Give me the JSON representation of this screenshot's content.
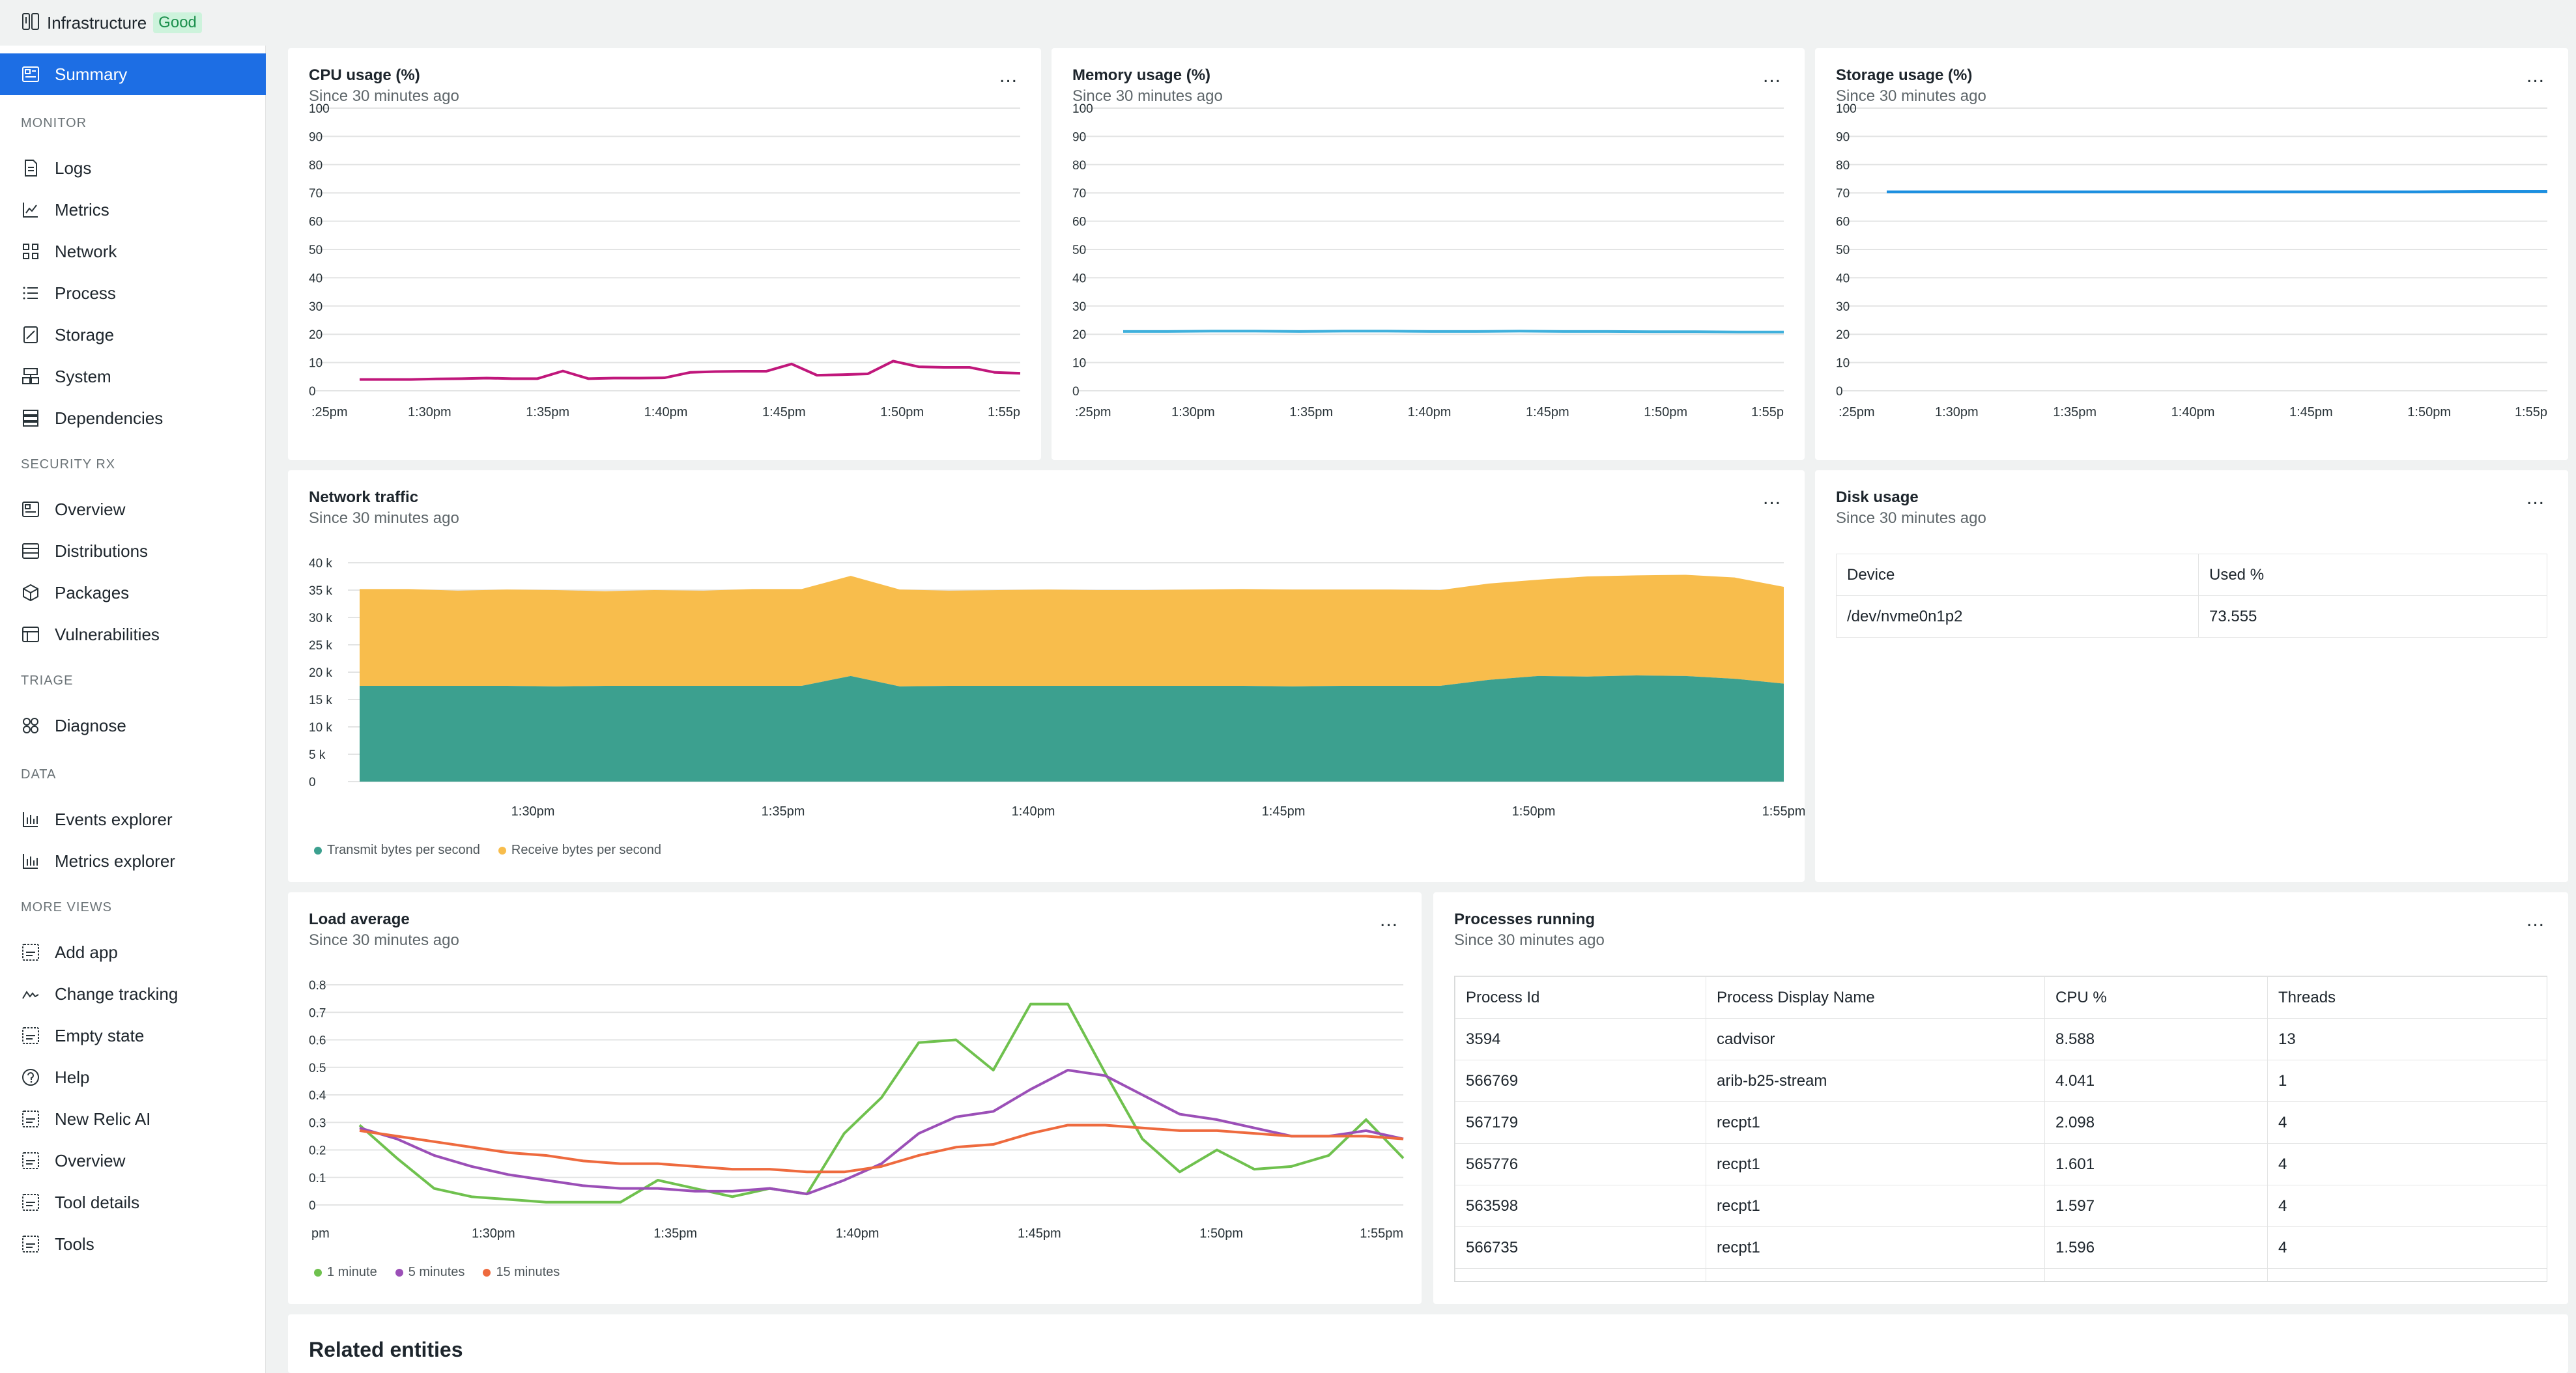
{
  "header": {
    "title": "Infrastructure",
    "status": "Good"
  },
  "sidebar": {
    "summary": "Summary",
    "sections": {
      "monitor": "MONITOR",
      "security": "SECURITY RX",
      "triage": "TRIAGE",
      "data": "DATA",
      "more": "MORE VIEWS"
    },
    "monitor": [
      "Logs",
      "Metrics",
      "Network",
      "Process",
      "Storage",
      "System",
      "Dependencies"
    ],
    "security": [
      "Overview",
      "Distributions",
      "Packages",
      "Vulnerabilities"
    ],
    "triage": [
      "Diagnose"
    ],
    "data": [
      "Events explorer",
      "Metrics explorer"
    ],
    "more": [
      "Add app",
      "Change tracking",
      "Empty state",
      "Help",
      "New Relic AI",
      "Overview",
      "Tool details",
      "Tools"
    ]
  },
  "cards": {
    "cpu": {
      "title": "CPU usage (%)",
      "subtitle": "Since 30 minutes ago",
      "menu": "..."
    },
    "memory": {
      "title": "Memory usage (%)",
      "subtitle": "Since 30 minutes ago",
      "menu": "..."
    },
    "storage": {
      "title": "Storage usage (%)",
      "subtitle": "Since 30 minutes ago",
      "menu": "..."
    },
    "network": {
      "title": "Network traffic",
      "subtitle": "Since 30 minutes ago",
      "menu": "..."
    },
    "disk": {
      "title": "Disk usage",
      "subtitle": "Since 30 minutes ago",
      "menu": "...",
      "headers": [
        "Device",
        "Used %"
      ],
      "rows": [
        [
          "/dev/nvme0n1p2",
          "73.555"
        ]
      ]
    },
    "load": {
      "title": "Load average",
      "subtitle": "Since 30 minutes ago",
      "menu": "..."
    },
    "processes": {
      "title": "Processes running",
      "subtitle": "Since 30 minutes ago",
      "menu": "...",
      "headers": [
        "Process Id",
        "Process Display Name",
        "CPU %",
        "Threads"
      ],
      "rows": [
        [
          "3594",
          "cadvisor",
          "8.588",
          "13"
        ],
        [
          "566769",
          "arib-b25-stream",
          "4.041",
          "1"
        ],
        [
          "567179",
          "recpt1",
          "2.098",
          "4"
        ],
        [
          "565776",
          "recpt1",
          "1.601",
          "4"
        ],
        [
          "563598",
          "recpt1",
          "1.597",
          "4"
        ],
        [
          "566735",
          "recpt1",
          "1.596",
          "4"
        ]
      ]
    },
    "related": {
      "title": "Related entities"
    }
  },
  "chart_data": [
    {
      "id": "cpu",
      "type": "line",
      "title": "CPU usage (%)",
      "color": "#c0177b",
      "ylim": [
        0,
        100
      ],
      "yticks": [
        "0",
        "10",
        "20",
        "30",
        "40",
        "50",
        "60",
        "70",
        "80",
        "90",
        "100"
      ],
      "xticks": [
        ":25pm",
        "1:30pm",
        "1:35pm",
        "1:40pm",
        "1:45pm",
        "1:50pm",
        "1:55p"
      ],
      "series": [
        {
          "name": "CPU",
          "values": [
            4,
            4,
            4,
            4.2,
            4.3,
            4.5,
            4.3,
            4.3,
            7,
            4.3,
            4.5,
            4.5,
            4.6,
            6.5,
            6.8,
            6.9,
            6.9,
            9.5,
            5.5,
            5.7,
            6,
            10.5,
            8.5,
            8.3,
            8.3,
            6.5,
            6.2
          ]
        }
      ]
    },
    {
      "id": "memory",
      "type": "line",
      "title": "Memory usage (%)",
      "color": "#3fb0dc",
      "ylim": [
        0,
        100
      ],
      "yticks": [
        "0",
        "10",
        "20",
        "30",
        "40",
        "50",
        "60",
        "70",
        "80",
        "90",
        "100"
      ],
      "xticks": [
        ":25pm",
        "1:30pm",
        "1:35pm",
        "1:40pm",
        "1:45pm",
        "1:50pm",
        "1:55p"
      ],
      "series": [
        {
          "name": "Memory",
          "values": [
            21,
            21,
            21.1,
            21.1,
            21,
            21.1,
            21.1,
            21,
            21,
            21.1,
            21,
            21,
            20.9,
            20.9,
            20.8,
            20.8
          ]
        }
      ]
    },
    {
      "id": "storage",
      "type": "line",
      "title": "Storage usage (%)",
      "color": "#1b8fe0",
      "ylim": [
        0,
        100
      ],
      "yticks": [
        "0",
        "10",
        "20",
        "30",
        "40",
        "50",
        "60",
        "70",
        "80",
        "90",
        "100"
      ],
      "xticks": [
        ":25pm",
        "1:30pm",
        "1:35pm",
        "1:40pm",
        "1:45pm",
        "1:50pm",
        "1:55p"
      ],
      "series": [
        {
          "name": "Storage",
          "values": [
            70.4,
            70.4,
            70.4,
            70.4,
            70.4,
            70.4,
            70.4,
            70.4,
            70.4,
            70.5,
            70.5
          ]
        }
      ]
    },
    {
      "id": "network",
      "type": "area",
      "title": "Network traffic",
      "stacked": true,
      "ylim": [
        0,
        40000
      ],
      "yticks": [
        "0",
        "5 k",
        "10 k",
        "15 k",
        "20 k",
        "25 k",
        "30 k",
        "35 k",
        "40 k"
      ],
      "xticks": [
        "1:30pm",
        "1:35pm",
        "1:40pm",
        "1:45pm",
        "1:50pm",
        "1:55pm"
      ],
      "series": [
        {
          "name": "Transmit bytes per second",
          "color": "#3ca08f",
          "values": [
            17500,
            17500,
            17500,
            17500,
            17400,
            17500,
            17500,
            17500,
            17500,
            17500,
            19300,
            17400,
            17500,
            17500,
            17500,
            17500,
            17500,
            17500,
            17500,
            17400,
            17500,
            17500,
            17500,
            18600,
            19300,
            19200,
            19400,
            19300,
            18800,
            17900
          ]
        },
        {
          "name": "Receive bytes per second",
          "color": "#f8bd4c",
          "values": [
            17700,
            17700,
            17400,
            17600,
            17600,
            17300,
            17500,
            17400,
            17700,
            17700,
            18300,
            17700,
            17400,
            17500,
            17600,
            17500,
            17500,
            17600,
            17700,
            17700,
            17600,
            17600,
            17500,
            17600,
            17600,
            18300,
            18300,
            18500,
            18500,
            17700
          ]
        }
      ],
      "legend": [
        "Transmit bytes per second",
        "Receive bytes per second"
      ]
    },
    {
      "id": "load",
      "type": "line",
      "title": "Load average",
      "ylim": [
        0,
        0.8
      ],
      "yticks": [
        "0",
        "0.1",
        "0.2",
        "0.3",
        "0.4",
        "0.5",
        "0.6",
        "0.7",
        "0.8"
      ],
      "xticks": [
        "pm",
        "1:30pm",
        "1:35pm",
        "1:40pm",
        "1:45pm",
        "1:50pm",
        "1:55pm"
      ],
      "series": [
        {
          "name": "1 minute",
          "color": "#6fc14e",
          "values": [
            0.29,
            0.17,
            0.06,
            0.03,
            0.02,
            0.01,
            0.01,
            0.01,
            0.09,
            0.06,
            0.03,
            0.06,
            0.04,
            0.26,
            0.39,
            0.59,
            0.6,
            0.49,
            0.73,
            0.73,
            0.48,
            0.24,
            0.12,
            0.2,
            0.13,
            0.14,
            0.18,
            0.31,
            0.17
          ]
        },
        {
          "name": "5 minutes",
          "color": "#9b4fb7",
          "values": [
            0.28,
            0.24,
            0.18,
            0.14,
            0.11,
            0.09,
            0.07,
            0.06,
            0.06,
            0.05,
            0.05,
            0.06,
            0.04,
            0.09,
            0.15,
            0.26,
            0.32,
            0.34,
            0.42,
            0.49,
            0.47,
            0.4,
            0.33,
            0.31,
            0.28,
            0.25,
            0.25,
            0.27,
            0.24
          ]
        },
        {
          "name": "15 minutes",
          "color": "#ee6a3e",
          "values": [
            0.27,
            0.25,
            0.23,
            0.21,
            0.19,
            0.18,
            0.16,
            0.15,
            0.15,
            0.14,
            0.13,
            0.13,
            0.12,
            0.12,
            0.14,
            0.18,
            0.21,
            0.22,
            0.26,
            0.29,
            0.29,
            0.28,
            0.27,
            0.27,
            0.26,
            0.25,
            0.25,
            0.25,
            0.24
          ]
        }
      ],
      "legend": [
        "1 minute",
        "5 minutes",
        "15 minutes"
      ]
    }
  ]
}
